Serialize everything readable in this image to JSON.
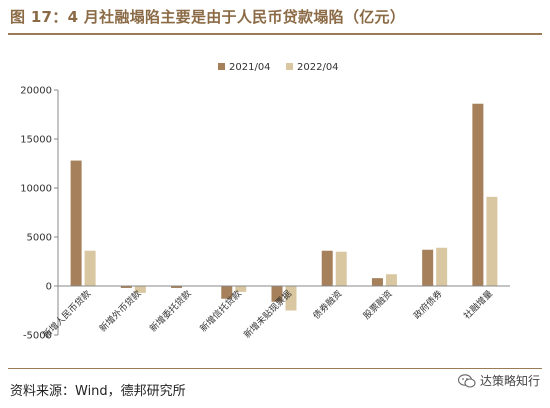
{
  "figure": {
    "title": "图 17：4 月社融塌陷主要是由于人民币贷款塌陷（亿元）",
    "source": "资料来源：Wind，德邦研究所",
    "watermark": "达策略知行"
  },
  "chart_data": {
    "type": "bar",
    "categories": [
      "新增人民币贷款",
      "新增外币贷款",
      "新增委托贷款",
      "新增信托贷款",
      "新增未贴现票据",
      "债券融资",
      "股票融资",
      "政府债券",
      "社融增量"
    ],
    "series": [
      {
        "name": "2021/04",
        "color": "#A5805A",
        "values": [
          12800,
          -200,
          -200,
          -1300,
          -1600,
          3600,
          800,
          3700,
          18600
        ]
      },
      {
        "name": "2022/04",
        "color": "#D9C7A2",
        "values": [
          3600,
          -700,
          0,
          -600,
          -2500,
          3500,
          1200,
          3900,
          9100
        ]
      }
    ],
    "ylim": [
      -5000,
      20000
    ],
    "yticks": [
      -5000,
      0,
      5000,
      10000,
      15000,
      20000
    ],
    "xlabel": "",
    "ylabel": "",
    "legend_position": "top",
    "grid": false
  }
}
